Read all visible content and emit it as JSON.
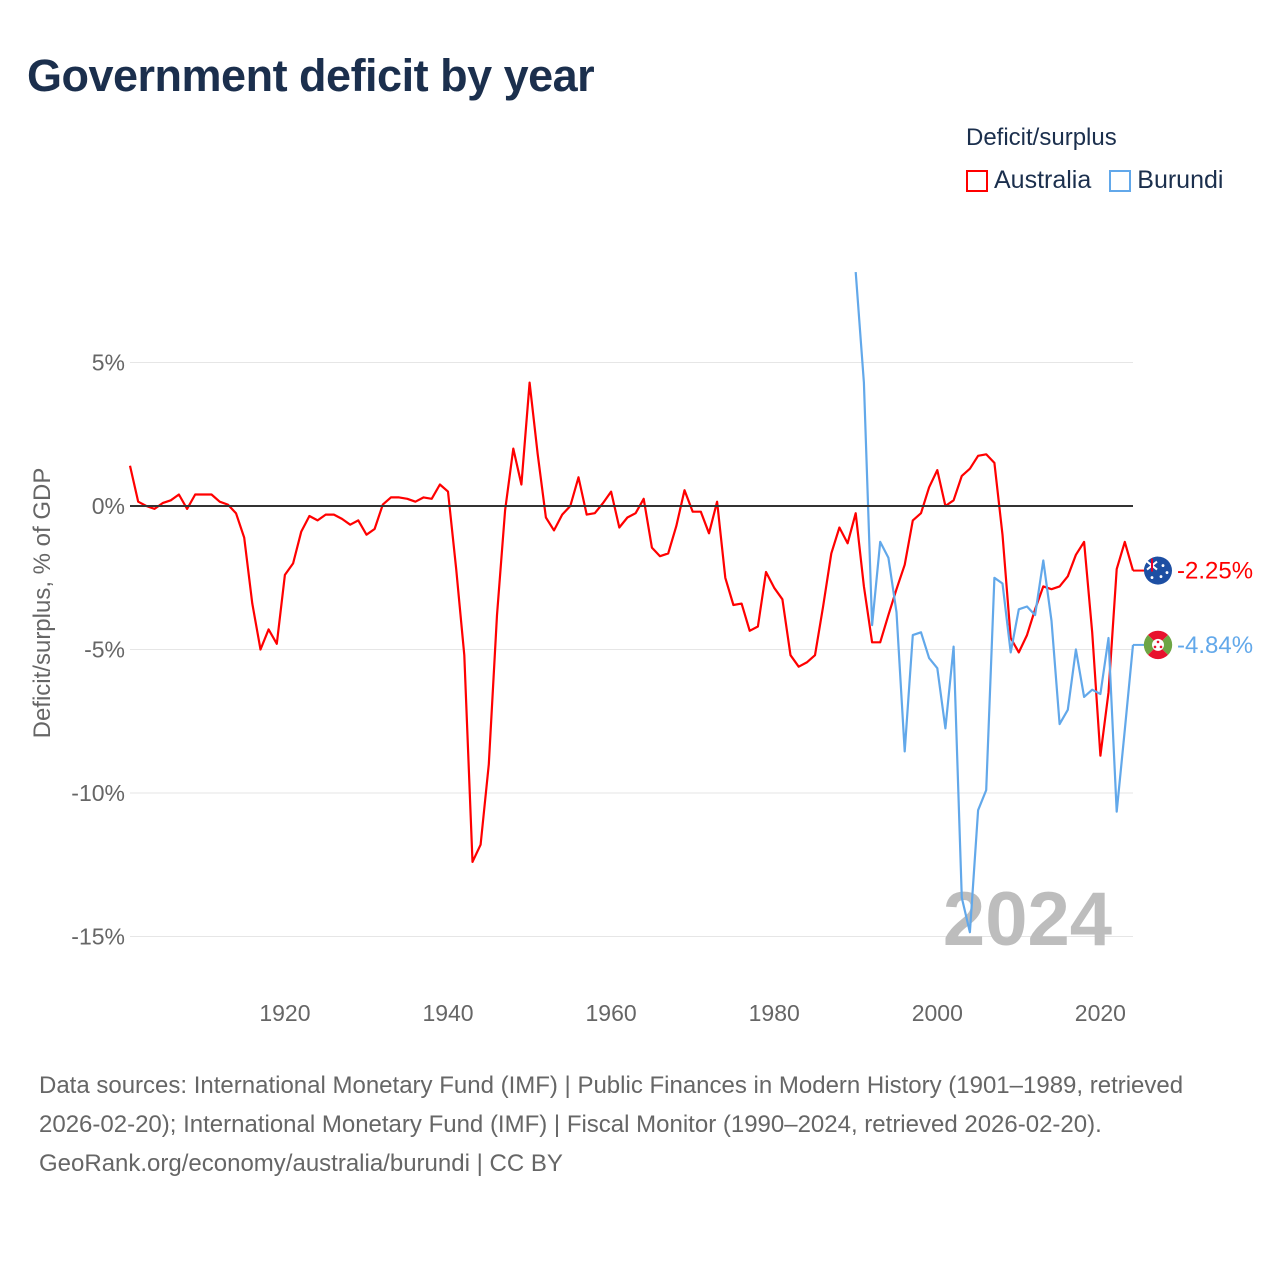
{
  "title": "Government deficit by year",
  "legend": {
    "title": "Deficit/surplus",
    "items": [
      {
        "label": "Australia",
        "color": "#ff0000"
      },
      {
        "label": "Burundi",
        "color": "#62a8ea"
      }
    ]
  },
  "footer": {
    "sources": "Data sources: International Monetary Fund (IMF) | Public Finances in Modern History (1901–1989, retrieved 2026-02-20); International Monetary Fund (IMF) | Fiscal Monitor (1990–2024, retrieved 2026-02-20).",
    "credit": "GeoRank.org/economy/australia/burundi | CC BY"
  },
  "chart_data": {
    "type": "line",
    "title": "Government deficit by year",
    "ylabel": "Deficit/surplus, % of GDP",
    "xlabel": "",
    "xlim": [
      1901,
      2024
    ],
    "ylim": [
      -16.5,
      8.5
    ],
    "x_ticks": [
      1920,
      1940,
      1960,
      1980,
      2000,
      2020
    ],
    "y_ticks": [
      {
        "value": 5,
        "label": "5%"
      },
      {
        "value": 0,
        "label": "0%"
      },
      {
        "value": -5,
        "label": "-5%"
      },
      {
        "value": -10,
        "label": "-10%"
      },
      {
        "value": -15,
        "label": "-15%"
      }
    ],
    "current_year_label": "2024",
    "series": [
      {
        "name": "Australia",
        "color": "#ff0000",
        "start_year": 1901,
        "end_label": "-2.25%",
        "flag": "australia-flag",
        "values": [
          1.4,
          0.15,
          0,
          -0.1,
          0.1,
          0.2,
          0.4,
          -0.1,
          0.4,
          0.4,
          0.4,
          0.15,
          0.05,
          -0.25,
          -1.1,
          -3.4,
          -5.0,
          -4.3,
          -4.8,
          -2.4,
          -2.0,
          -0.9,
          -0.35,
          -0.5,
          -0.3,
          -0.3,
          -0.45,
          -0.65,
          -0.5,
          -1.0,
          -0.8,
          0.05,
          0.3,
          0.3,
          0.25,
          0.15,
          0.3,
          0.25,
          0.75,
          0.5,
          -2.2,
          -5.2,
          -12.4,
          -11.8,
          -9.0,
          -3.8,
          -0.15,
          2.0,
          0.75,
          4.3,
          1.8,
          -0.4,
          -0.85,
          -0.3,
          0.0,
          1.0,
          -0.3,
          -0.25,
          0.1,
          0.5,
          -0.75,
          -0.4,
          -0.25,
          0.25,
          -1.45,
          -1.75,
          -1.65,
          -0.7,
          0.55,
          -0.2,
          -0.2,
          -0.95,
          0.15,
          -2.5,
          -3.45,
          -3.4,
          -4.35,
          -4.2,
          -2.3,
          -2.85,
          -3.25,
          -5.2,
          -5.6,
          -5.45,
          -5.2,
          -3.5,
          -1.65,
          -0.75,
          -1.3,
          -0.25,
          -2.8,
          -4.75,
          -4.75,
          -3.8,
          -2.9,
          -2.05,
          -0.5,
          -0.25,
          0.65,
          1.25,
          0,
          0.2,
          1.05,
          1.3,
          1.75,
          1.8,
          1.5,
          -1.0,
          -4.6,
          -5.1,
          -4.5,
          -3.6,
          -2.8,
          -2.9,
          -2.8,
          -2.45,
          -1.7,
          -1.25,
          -4.4,
          -8.7,
          -6.5,
          -2.2,
          -1.25,
          -2.25
        ]
      },
      {
        "name": "Burundi",
        "color": "#62a8ea",
        "start_year": 1990,
        "end_label": "-4.84%",
        "flag": "burundi-flag",
        "values": [
          8.15,
          4.3,
          -4.15,
          -1.25,
          -1.8,
          -3.7,
          -8.55,
          -4.5,
          -4.4,
          -5.3,
          -5.65,
          -7.75,
          -4.9,
          -13.65,
          -14.85,
          -10.6,
          -9.9,
          -2.5,
          -2.7,
          -5.1,
          -3.6,
          -3.5,
          -3.8,
          -1.9,
          -4.0,
          -7.6,
          -7.1,
          -5.0,
          -6.65,
          -6.4,
          -6.55,
          -4.6,
          -10.65,
          -7.8,
          -4.84
        ]
      }
    ]
  }
}
